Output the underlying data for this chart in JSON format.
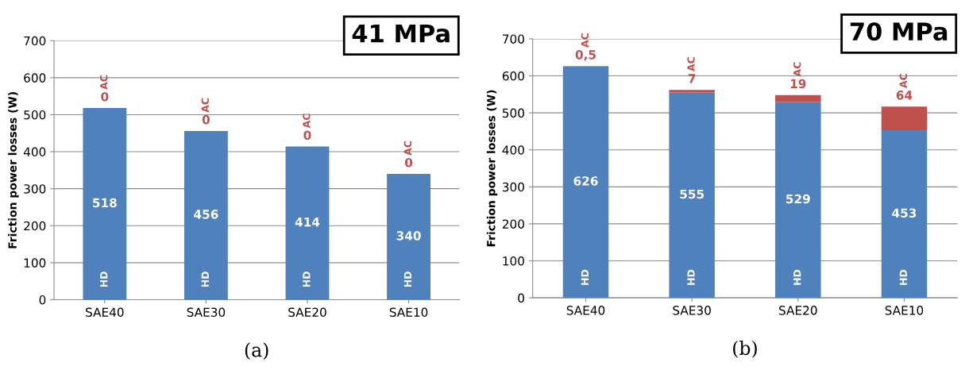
{
  "chart_data": [
    {
      "type": "bar",
      "stacked": true,
      "title": "41 MPa",
      "ylabel": "Friction power losses (W)",
      "annotations": [
        "(a)"
      ],
      "categories": [
        "SAE40",
        "SAE30",
        "SAE20",
        "SAE10"
      ],
      "ylim": [
        0,
        700
      ],
      "yticks": [
        0,
        100,
        200,
        300,
        400,
        500,
        600,
        700
      ],
      "grid": "y",
      "series": [
        {
          "name": "HD",
          "color": "#4f81bd",
          "values": [
            518,
            456,
            414,
            340
          ],
          "value_labels": [
            "518",
            "456",
            "414",
            "340"
          ]
        },
        {
          "name": "AC",
          "color": "#c0504d",
          "values": [
            0,
            0,
            0,
            0
          ],
          "value_labels": [
            "0",
            "0",
            "0",
            "0"
          ]
        }
      ]
    },
    {
      "type": "bar",
      "stacked": true,
      "title": "70 MPa",
      "ylabel": "Friction power losses (W)",
      "annotations": [
        "(b)"
      ],
      "categories": [
        "SAE40",
        "SAE30",
        "SAE20",
        "SAE10"
      ],
      "ylim": [
        0,
        700
      ],
      "yticks": [
        0,
        100,
        200,
        300,
        400,
        500,
        600,
        700
      ],
      "grid": "y",
      "series": [
        {
          "name": "HD",
          "color": "#4f81bd",
          "values": [
            626,
            555,
            529,
            453
          ],
          "value_labels": [
            "626",
            "555",
            "529",
            "453"
          ]
        },
        {
          "name": "AC",
          "color": "#c0504d",
          "values": [
            0.5,
            7,
            19,
            64
          ],
          "value_labels": [
            "0,5",
            "7",
            "19",
            "64"
          ]
        }
      ]
    }
  ]
}
